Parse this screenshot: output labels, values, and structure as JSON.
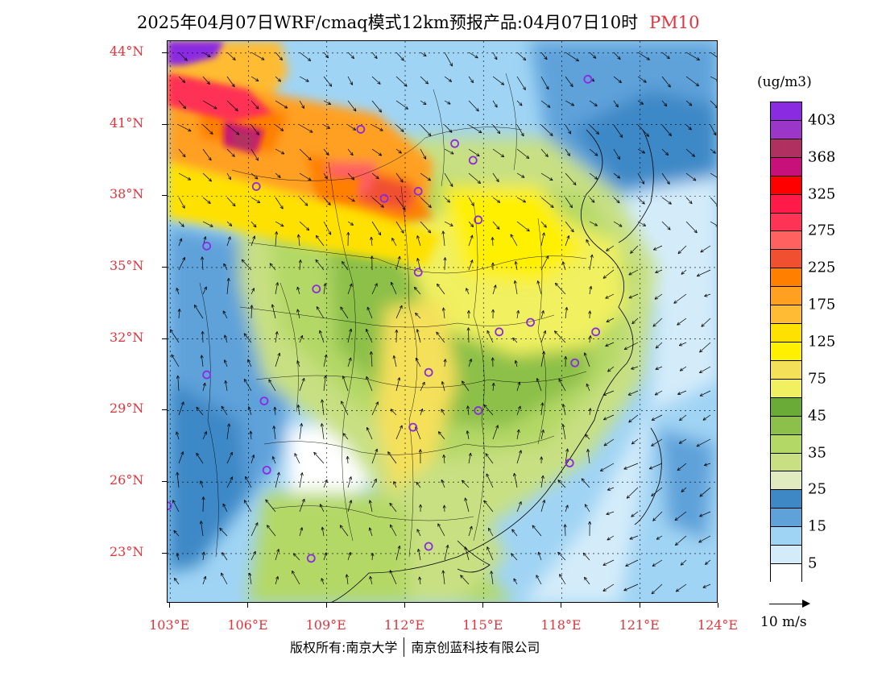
{
  "header": {
    "title": "2025年04月07日WRF/cmaq模式12km预报产品:04月07日10时",
    "pollutant": "PM10",
    "pollutant_color": "#e8313a"
  },
  "map": {
    "lat_labels": [
      "44°N",
      "41°N",
      "38°N",
      "35°N",
      "32°N",
      "29°N",
      "26°N",
      "23°N"
    ],
    "lon_labels": [
      "103°E",
      "106°E",
      "109°E",
      "112°E",
      "115°E",
      "118°E",
      "121°E",
      "124°E"
    ],
    "lat_range": [
      20.9,
      44.5
    ],
    "lon_range": [
      102.9,
      124.0
    ],
    "grid_lats": [
      44,
      41,
      38,
      35,
      32,
      29,
      26,
      23
    ],
    "grid_lons": [
      103,
      106,
      109,
      112,
      115,
      118,
      121,
      124
    ],
    "station_marker_color": "#8a2be2",
    "stations": [
      {
        "lon": 119.0,
        "lat": 42.9
      },
      {
        "lon": 110.3,
        "lat": 40.8
      },
      {
        "lon": 113.9,
        "lat": 40.2
      },
      {
        "lon": 114.6,
        "lat": 39.5
      },
      {
        "lon": 106.3,
        "lat": 38.4
      },
      {
        "lon": 111.2,
        "lat": 37.9
      },
      {
        "lon": 112.5,
        "lat": 38.2
      },
      {
        "lon": 114.8,
        "lat": 37.0
      },
      {
        "lon": 104.4,
        "lat": 35.9
      },
      {
        "lon": 112.5,
        "lat": 34.8
      },
      {
        "lon": 108.6,
        "lat": 34.1
      },
      {
        "lon": 115.6,
        "lat": 32.3
      },
      {
        "lon": 116.8,
        "lat": 32.7
      },
      {
        "lon": 119.3,
        "lat": 32.3
      },
      {
        "lon": 118.5,
        "lat": 31.0
      },
      {
        "lon": 104.4,
        "lat": 30.5
      },
      {
        "lon": 112.9,
        "lat": 30.6
      },
      {
        "lon": 106.6,
        "lat": 29.4
      },
      {
        "lon": 114.8,
        "lat": 29.0
      },
      {
        "lon": 112.3,
        "lat": 28.3
      },
      {
        "lon": 106.7,
        "lat": 26.5
      },
      {
        "lon": 118.3,
        "lat": 26.8
      },
      {
        "lon": 102.9,
        "lat": 25.0
      },
      {
        "lon": 112.9,
        "lat": 23.3
      },
      {
        "lon": 108.4,
        "lat": 22.8
      }
    ]
  },
  "legend": {
    "unit": "(ug/m3)",
    "bins_top_to_bottom": [
      {
        "color": "#8a2be2",
        "label": "403"
      },
      {
        "color": "#9b36c9",
        "label": ""
      },
      {
        "color": "#b03060",
        "label": "368"
      },
      {
        "color": "#c8107a",
        "label": ""
      },
      {
        "color": "#ff0000",
        "label": "325"
      },
      {
        "color": "#ff1a4a",
        "label": ""
      },
      {
        "color": "#ff3355",
        "label": "275"
      },
      {
        "color": "#ff6060",
        "label": ""
      },
      {
        "color": "#f05030",
        "label": "225"
      },
      {
        "color": "#ff8000",
        "label": ""
      },
      {
        "color": "#ffa020",
        "label": "175"
      },
      {
        "color": "#ffbb33",
        "label": ""
      },
      {
        "color": "#ffe100",
        "label": "125"
      },
      {
        "color": "#fff000",
        "label": ""
      },
      {
        "color": "#f5e05a",
        "label": "75"
      },
      {
        "color": "#f0f060",
        "label": ""
      },
      {
        "color": "#6aaa36",
        "label": "45"
      },
      {
        "color": "#8cc04a",
        "label": ""
      },
      {
        "color": "#b4d866",
        "label": "35"
      },
      {
        "color": "#c8e082",
        "label": ""
      },
      {
        "color": "#e0ecc0",
        "label": "25"
      },
      {
        "color": "#3e88c6",
        "label": ""
      },
      {
        "color": "#5fa2da",
        "label": "15"
      },
      {
        "color": "#a0d4f4",
        "label": ""
      },
      {
        "color": "#d4ecfa",
        "label": "5"
      },
      {
        "color": "#ffffff",
        "label": ""
      }
    ]
  },
  "wind_reference": {
    "label": "10 m/s"
  },
  "credits": {
    "left": "版权所有:南京大学",
    "right": "南京创蓝科技有限公司"
  }
}
